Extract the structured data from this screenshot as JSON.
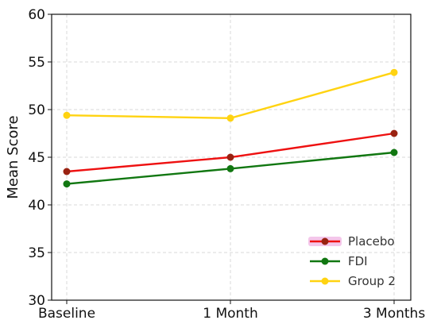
{
  "chart_data": {
    "type": "line",
    "categories": [
      "Baseline",
      "1 Month",
      "3 Months"
    ],
    "ylabel": "Mean Score",
    "xlabel": "",
    "ylim": [
      30,
      60
    ],
    "yticks": [
      30,
      35,
      40,
      45,
      50,
      55,
      60
    ],
    "grid": true,
    "legend_position": "bottom-right",
    "series": [
      {
        "name": "Placebo",
        "values": [
          43.5,
          45.0,
          47.5
        ],
        "line_color": "#ee1111",
        "marker_color": "#992211",
        "legend_highlight": "#f4c6ea"
      },
      {
        "name": "FDI",
        "values": [
          42.2,
          43.8,
          45.5
        ],
        "line_color": "#117711",
        "marker_color": "#117711",
        "legend_highlight": ""
      },
      {
        "name": "Group 2",
        "values": [
          49.4,
          49.1,
          53.9
        ],
        "line_color": "#ffd311",
        "marker_color": "#ffd311",
        "legend_highlight": ""
      }
    ]
  }
}
